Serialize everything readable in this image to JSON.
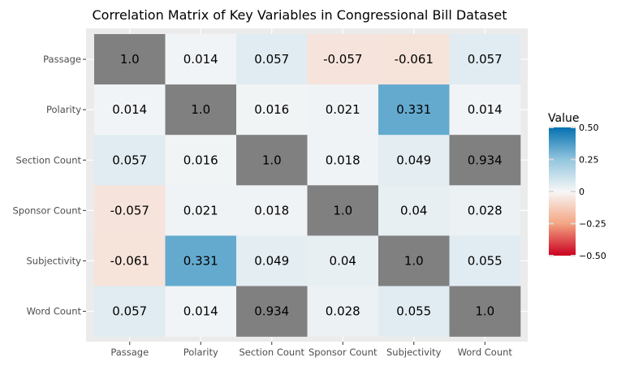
{
  "chart_data": {
    "type": "heatmap",
    "title": "Correlation Matrix of Key Variables in Congressional Bill Dataset",
    "x_categories": [
      "Passage",
      "Polarity",
      "Section Count",
      "Sponsor Count",
      "Subjectivity",
      "Word Count"
    ],
    "y_categories": [
      "Passage",
      "Polarity",
      "Section Count",
      "Sponsor Count",
      "Subjectivity",
      "Word Count"
    ],
    "values": [
      [
        1.0,
        0.014,
        0.057,
        -0.057,
        -0.061,
        0.057
      ],
      [
        0.014,
        1.0,
        0.016,
        0.021,
        0.331,
        0.014
      ],
      [
        0.057,
        0.016,
        1.0,
        0.018,
        0.049,
        0.934
      ],
      [
        -0.057,
        0.021,
        0.018,
        1.0,
        0.04,
        0.028
      ],
      [
        -0.061,
        0.331,
        0.049,
        0.04,
        1.0,
        0.055
      ],
      [
        0.057,
        0.014,
        0.934,
        0.028,
        0.055,
        1.0
      ]
    ],
    "labels": [
      [
        "1.0",
        "0.014",
        "0.057",
        "-0.057",
        "-0.061",
        "0.057"
      ],
      [
        "0.014",
        "1.0",
        "0.016",
        "0.021",
        "0.331",
        "0.014"
      ],
      [
        "0.057",
        "0.016",
        "1.0",
        "0.018",
        "0.049",
        "0.934"
      ],
      [
        "-0.057",
        "0.021",
        "0.018",
        "1.0",
        "0.04",
        "0.028"
      ],
      [
        "-0.061",
        "0.331",
        "0.049",
        "0.04",
        "1.0",
        "0.055"
      ],
      [
        "0.057",
        "0.014",
        "0.934",
        "0.028",
        "0.055",
        "1.0"
      ]
    ],
    "color_scale": {
      "type": "diverging",
      "low": "#ca0020",
      "mid": "#f7f7f7",
      "high": "#0571b0",
      "limits": [
        -0.5,
        0.5
      ],
      "out_of_range_color": "#808080"
    },
    "legend": {
      "title": "Value",
      "position": "right",
      "ticks": [
        "0.50",
        "0.25",
        "0",
        "−0.25",
        "−0.50"
      ],
      "tick_values": [
        0.5,
        0.25,
        0,
        -0.25,
        -0.5
      ]
    },
    "panel_background": "#ebebeb",
    "grid": true
  }
}
